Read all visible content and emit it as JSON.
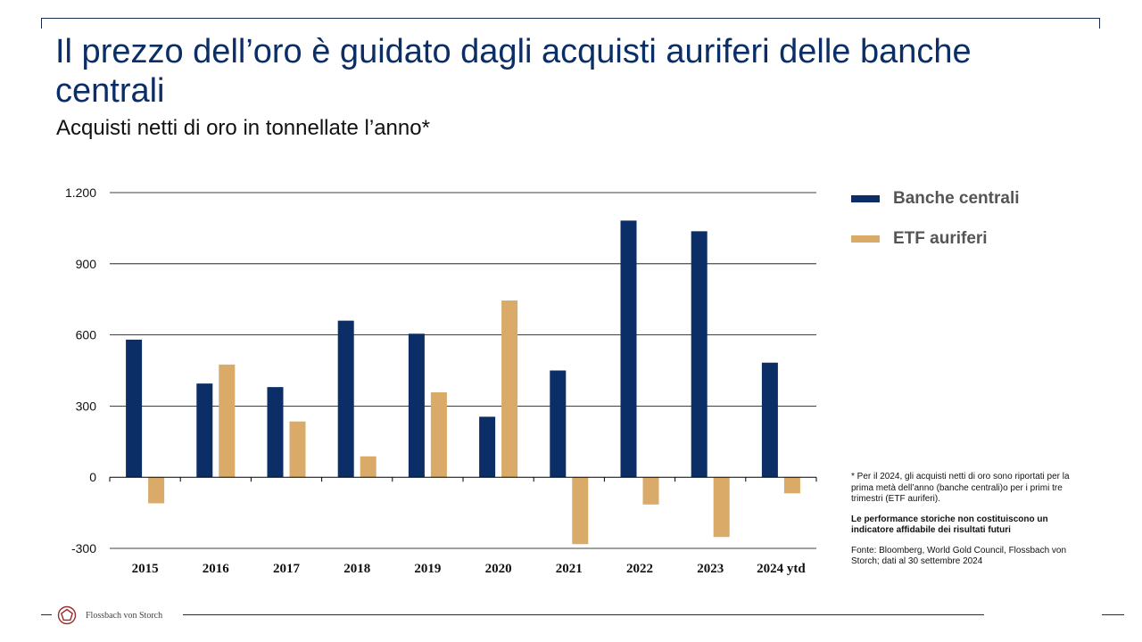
{
  "title": "Il prezzo dell’oro è guidato dagli acquisti auriferi delle banche centrali",
  "subtitle": "Acquisti netti di oro in tonnellate l’anno*",
  "chart_data": {
    "type": "bar",
    "categories": [
      "2015",
      "2016",
      "2017",
      "2018",
      "2019",
      "2020",
      "2021",
      "2022",
      "2023",
      "2024 ytd"
    ],
    "series": [
      {
        "name": "Banche centrali",
        "color": "#0b2e66",
        "values": [
          580,
          395,
          380,
          660,
          605,
          255,
          450,
          1082,
          1037,
          483
        ]
      },
      {
        "name": "ETF auriferi",
        "color": "#d9aa68",
        "values": [
          -110,
          475,
          235,
          88,
          358,
          745,
          -282,
          -115,
          -252,
          -68
        ]
      }
    ],
    "ylim": [
      -300,
      1200
    ],
    "yticks": [
      -300,
      0,
      300,
      600,
      900,
      1200
    ],
    "ytick_labels": [
      "-300",
      "0",
      "300",
      "600",
      "900",
      "1.200"
    ],
    "grid": true,
    "legend": "right"
  },
  "notes": {
    "footnote": "* Per il 2024, gli acquisti netti di oro sono riportati per la prima metà dell’anno (banche centrali)o per i primi tre trimestri (ETF auriferi).",
    "disclaimer": "Le performance storiche non costituiscono un indicatore affidabile dei risultati futuri",
    "source": "Fonte: Bloomberg, World Gold Council, Flossbach von Storch; dati al 30 settembre 2024"
  },
  "footer": {
    "brand": "Flossbach von Storch",
    "logo_icon": "pentagon-logo-icon",
    "logo_color": "#9b2b2b"
  }
}
